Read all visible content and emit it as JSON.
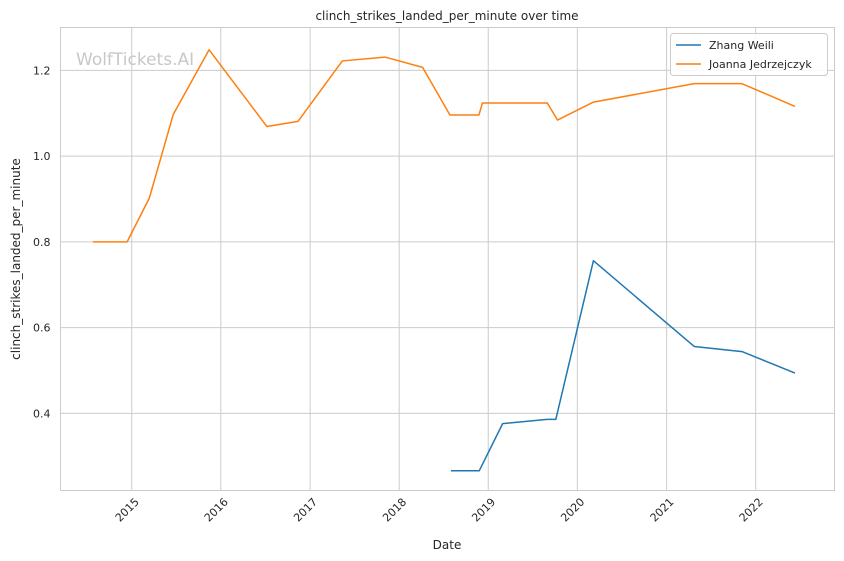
{
  "chart_data": {
    "type": "line",
    "title": "clinch_strikes_landed_per_minute over time",
    "xlabel": "Date",
    "ylabel": "clinch_strikes_landed_per_minute",
    "watermark": "WolfTickets.AI",
    "xlim": [
      "2014-03-15",
      "2022-11-20"
    ],
    "ylim": [
      0.22,
      1.3
    ],
    "x_ticks": [
      "2015",
      "2016",
      "2017",
      "2018",
      "2019",
      "2020",
      "2021",
      "2022"
    ],
    "y_ticks": [
      0.4,
      0.6,
      0.8,
      1.0,
      1.2
    ],
    "grid": true,
    "legend_position": "top-right",
    "colors": {
      "Zhang Weili": "#1f77b4",
      "Joanna Jedrzejczyk": "#ff7f0e"
    },
    "series": [
      {
        "name": "Zhang Weili",
        "color": "#1f77b4",
        "points": [
          [
            "2018-08-01",
            0.266
          ],
          [
            "2018-11-25",
            0.266
          ],
          [
            "2019-03-01",
            0.376
          ],
          [
            "2019-08-30",
            0.386
          ],
          [
            "2019-10-05",
            0.386
          ],
          [
            "2020-03-07",
            0.756
          ],
          [
            "2021-04-24",
            0.556
          ],
          [
            "2021-11-06",
            0.544
          ],
          [
            "2022-06-11",
            0.494
          ]
        ]
      },
      {
        "name": "Joanna Jedrzejczyk",
        "color": "#ff7f0e",
        "points": [
          [
            "2014-07-26",
            0.8
          ],
          [
            "2014-12-13",
            0.8
          ],
          [
            "2015-03-14",
            0.902
          ],
          [
            "2015-06-20",
            1.097
          ],
          [
            "2015-11-14",
            1.248
          ],
          [
            "2016-07-08",
            1.069
          ],
          [
            "2016-11-12",
            1.081
          ],
          [
            "2017-05-13",
            1.222
          ],
          [
            "2017-11-04",
            1.231
          ],
          [
            "2018-04-07",
            1.207
          ],
          [
            "2018-07-28",
            1.096
          ],
          [
            "2018-11-24",
            1.096
          ],
          [
            "2018-12-08",
            1.124
          ],
          [
            "2019-08-31",
            1.124
          ],
          [
            "2019-10-12",
            1.084
          ],
          [
            "2020-03-07",
            1.126
          ],
          [
            "2021-04-24",
            1.169
          ],
          [
            "2021-11-06",
            1.169
          ],
          [
            "2022-06-11",
            1.116
          ]
        ]
      }
    ]
  }
}
